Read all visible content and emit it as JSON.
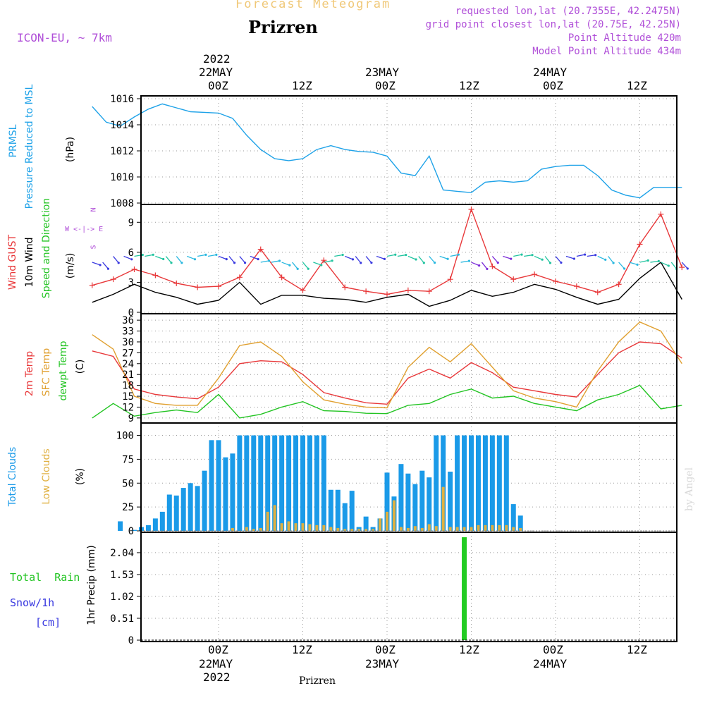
{
  "header": {
    "subtitle": "Forecast Meteogram",
    "location": "Prizren",
    "model": "ICON-EU, ~ 7km",
    "requested": "requested lon,lat (20.7355E, 42.2475N)",
    "gridpoint": "grid point closest lon,lat (20.75E, 42.25N)",
    "point_alt": "Point Altitude 420m",
    "model_alt": "Model Point Altitude 434m",
    "footer": "Prizren",
    "credit": "by Angel"
  },
  "time_axis": {
    "top_year": "2022",
    "top_dates": [
      "22MAY",
      "23MAY",
      "24MAY"
    ],
    "top_ticks": [
      "00Z",
      "12Z",
      "00Z",
      "12Z",
      "00Z",
      "12Z"
    ],
    "bottom_ticks": [
      "00Z",
      "12Z",
      "00Z",
      "12Z",
      "00Z",
      "12Z"
    ],
    "bottom_dates": [
      "22MAY",
      "23MAY",
      "24MAY"
    ],
    "bottom_year": "2022"
  },
  "panel_labels": {
    "p1": [
      "PRMSL",
      "Pressure Reduced to MSL",
      "(hPa)"
    ],
    "p2": [
      "Wind GUST",
      "10m Wind",
      "Speed and Direction",
      "(m/s)"
    ],
    "p2_compass": [
      "N",
      "S",
      "W <-|-> E"
    ],
    "p3": [
      "2m Temp",
      "SFC Temp",
      "dewpt Temp",
      "(C)"
    ],
    "p4": [
      "Total Clouds",
      "Low Clouds",
      "(%)"
    ],
    "p5_left": [
      "Total  Rain",
      "Snow/1h",
      "[cm]"
    ],
    "p5_axis": "1hr Precip (mm)"
  },
  "colors": {
    "pressure": "#1ea2e8",
    "gust": "#e8383a",
    "wind": "#000000",
    "temp2m": "#e8383a",
    "sfc": "#e0a030",
    "dewpt": "#22c422",
    "total_cloud": "#1a9ae8",
    "low_cloud": "#e0b040",
    "rain": "#22cc22",
    "snow": "#3838e0",
    "title_gold": "#f0c878",
    "purple": "#b04fd8"
  },
  "chart_data": [
    {
      "type": "line",
      "name": "PRMSL",
      "ylabel": "(hPa)",
      "ylim": [
        1008,
        1016
      ],
      "yticks": [
        1016,
        1014,
        1012,
        1010,
        1008
      ],
      "x_hours": [
        -18,
        -16,
        -14,
        -12,
        -10,
        -8,
        -6,
        -4,
        -2,
        0,
        2,
        4,
        6,
        8,
        10,
        12,
        14,
        16,
        18,
        20,
        22,
        24,
        26,
        28,
        30,
        32,
        34,
        36,
        38,
        40,
        42,
        44,
        46,
        48,
        50,
        52,
        54,
        56,
        58,
        60,
        62,
        64,
        66
      ],
      "series": [
        {
          "name": "PRMSL",
          "values": [
            1015.4,
            1014.2,
            1013.9,
            1014.6,
            1015.2,
            1015.6,
            1015.3,
            1015.0,
            1014.95,
            1014.9,
            1014.5,
            1013.2,
            1012.1,
            1011.4,
            1011.25,
            1011.4,
            1012.1,
            1012.4,
            1012.1,
            1011.95,
            1011.9,
            1011.6,
            1010.3,
            1010.1,
            1011.6,
            1009.0,
            1008.9,
            1008.8,
            1009.6,
            1009.7,
            1009.6,
            1009.7,
            1010.6,
            1010.8,
            1010.9,
            1010.9,
            1010.1,
            1009.0,
            1008.6,
            1008.4,
            1009.2,
            1009.2,
            1009.2
          ]
        }
      ]
    },
    {
      "type": "line",
      "name": "Wind",
      "ylabel": "(m/s)",
      "ylim": [
        0,
        10.5
      ],
      "yticks": [
        9,
        6,
        3,
        0
      ],
      "x_hours": [
        -18,
        -15,
        -12,
        -9,
        -6,
        -3,
        0,
        3,
        6,
        9,
        12,
        15,
        18,
        21,
        24,
        27,
        30,
        33,
        36,
        39,
        42,
        45,
        48,
        51,
        54,
        57,
        60,
        63,
        66
      ],
      "series": [
        {
          "name": "Wind GUST",
          "values": [
            2.7,
            3.3,
            4.3,
            3.7,
            2.9,
            2.5,
            2.6,
            3.5,
            6.3,
            3.5,
            2.2,
            5.2,
            2.5,
            2.1,
            1.8,
            2.2,
            2.1,
            3.3,
            10.3,
            4.6,
            3.3,
            3.8,
            3.1,
            2.6,
            2.0,
            2.8,
            6.8,
            9.8,
            4.5
          ]
        },
        {
          "name": "10m Wind",
          "values": [
            1.0,
            1.8,
            2.8,
            2.0,
            1.5,
            0.8,
            1.2,
            3.0,
            0.8,
            1.7,
            1.7,
            1.4,
            1.3,
            1.0,
            1.5,
            1.8,
            0.6,
            1.2,
            2.2,
            1.6,
            2.0,
            2.8,
            2.3,
            1.5,
            0.8,
            1.3,
            3.4,
            5.0,
            1.3
          ]
        }
      ]
    },
    {
      "type": "line",
      "name": "Temperature",
      "ylabel": "(C)",
      "ylim": [
        8,
        37
      ],
      "yticks": [
        36,
        33,
        30,
        27,
        24,
        21,
        18,
        15,
        12,
        9
      ],
      "x_hours": [
        -18,
        -15,
        -12,
        -9,
        -6,
        -3,
        0,
        3,
        6,
        9,
        12,
        15,
        18,
        21,
        24,
        27,
        30,
        33,
        36,
        39,
        42,
        45,
        48,
        51,
        54,
        57,
        60,
        63,
        66
      ],
      "series": [
        {
          "name": "2m Temp",
          "values": [
            27.5,
            26.0,
            17.0,
            15.5,
            14.8,
            14.3,
            17.5,
            24.0,
            24.8,
            24.5,
            21.0,
            16.0,
            14.5,
            13.2,
            12.8,
            20.0,
            22.5,
            20.0,
            24.3,
            21.5,
            17.5,
            16.5,
            15.5,
            14.8,
            21.0,
            27.0,
            30.0,
            29.5,
            25.5
          ]
        },
        {
          "name": "SFC Temp",
          "values": [
            32.0,
            28.0,
            15.0,
            13.0,
            12.5,
            12.5,
            20.0,
            29.0,
            30.0,
            26.0,
            19.0,
            14.0,
            12.8,
            12.0,
            11.8,
            23.0,
            28.5,
            24.5,
            29.5,
            23.0,
            16.5,
            14.5,
            13.5,
            12.0,
            22.0,
            30.0,
            35.5,
            33.0,
            24.0
          ]
        },
        {
          "name": "dewpt Temp",
          "values": [
            9.0,
            13.0,
            9.5,
            10.5,
            11.2,
            10.5,
            15.5,
            9.0,
            10.0,
            12.0,
            13.5,
            11.0,
            10.8,
            10.3,
            10.2,
            12.5,
            13.0,
            15.5,
            17.0,
            14.5,
            15.0,
            13.0,
            12.0,
            11.0,
            14.0,
            15.5,
            18.0,
            11.5,
            12.5
          ]
        }
      ]
    },
    {
      "type": "bar",
      "name": "Clouds",
      "ylabel": "(%)",
      "ylim": [
        0,
        110
      ],
      "yticks": [
        100,
        75,
        50,
        25,
        0
      ],
      "x_hours": [
        -18,
        -17,
        -16,
        -15,
        -14,
        -13,
        -12,
        -11,
        -10,
        -9,
        -8,
        -7,
        -6,
        -5,
        -4,
        -3,
        -2,
        -1,
        0,
        1,
        2,
        3,
        4,
        5,
        6,
        7,
        8,
        9,
        10,
        11,
        12,
        13,
        14,
        15,
        16,
        17,
        18,
        19,
        20,
        21,
        22,
        23,
        24,
        25,
        26,
        27,
        28,
        29,
        30,
        31,
        32,
        33,
        34,
        35,
        36,
        37,
        38,
        39,
        40,
        41,
        42,
        43,
        44,
        45,
        46,
        47,
        48,
        49,
        50,
        51,
        52,
        53,
        54,
        55,
        56,
        57,
        58,
        59,
        60,
        61,
        62,
        63,
        64,
        65,
        66
      ],
      "series": [
        {
          "name": "Total Clouds",
          "values": [
            0,
            0,
            0,
            0,
            10,
            0,
            1,
            4,
            6,
            13,
            20,
            38,
            37,
            45,
            50,
            47,
            63,
            95,
            95,
            77,
            81,
            100,
            100,
            100,
            100,
            100,
            100,
            100,
            100,
            100,
            100,
            100,
            100,
            100,
            43,
            43,
            29,
            42,
            4,
            15,
            4,
            13,
            61,
            36,
            70,
            60,
            49,
            63,
            56,
            100,
            100,
            62,
            100,
            100,
            100,
            100,
            100,
            100,
            100,
            100,
            28,
            16,
            0,
            0,
            0,
            0,
            0,
            0,
            0,
            0,
            0,
            0,
            0,
            0,
            0,
            0,
            0,
            0,
            0,
            0,
            0,
            0,
            0,
            0,
            0
          ]
        },
        {
          "name": "Low Clouds",
          "values": [
            0,
            0,
            0,
            0,
            0,
            0,
            0,
            0,
            0,
            0,
            0,
            0,
            0,
            0,
            0,
            0,
            0,
            0,
            0,
            0,
            3,
            0,
            4,
            2,
            3,
            20,
            27,
            8,
            10,
            8,
            8,
            7,
            6,
            6,
            4,
            3,
            2,
            2,
            2,
            2,
            2,
            13,
            20,
            32,
            4,
            3,
            5,
            3,
            7,
            5,
            46,
            4,
            4,
            4,
            4,
            6,
            6,
            6,
            6,
            6,
            4,
            3,
            0,
            0,
            0,
            0,
            0,
            0,
            0,
            0,
            0,
            0,
            0,
            0,
            0,
            0,
            0,
            0,
            0,
            0,
            0,
            0,
            0,
            0,
            0
          ]
        }
      ]
    },
    {
      "type": "bar",
      "name": "Precip",
      "ylabel": "1hr Precip (mm)",
      "ylim": [
        0,
        2.45
      ],
      "yticks": [
        2.04,
        1.53,
        1.02,
        0.51,
        0
      ],
      "x_hours": [
        35
      ],
      "series": [
        {
          "name": "Total Rain",
          "values": [
            2.4
          ]
        }
      ]
    }
  ]
}
